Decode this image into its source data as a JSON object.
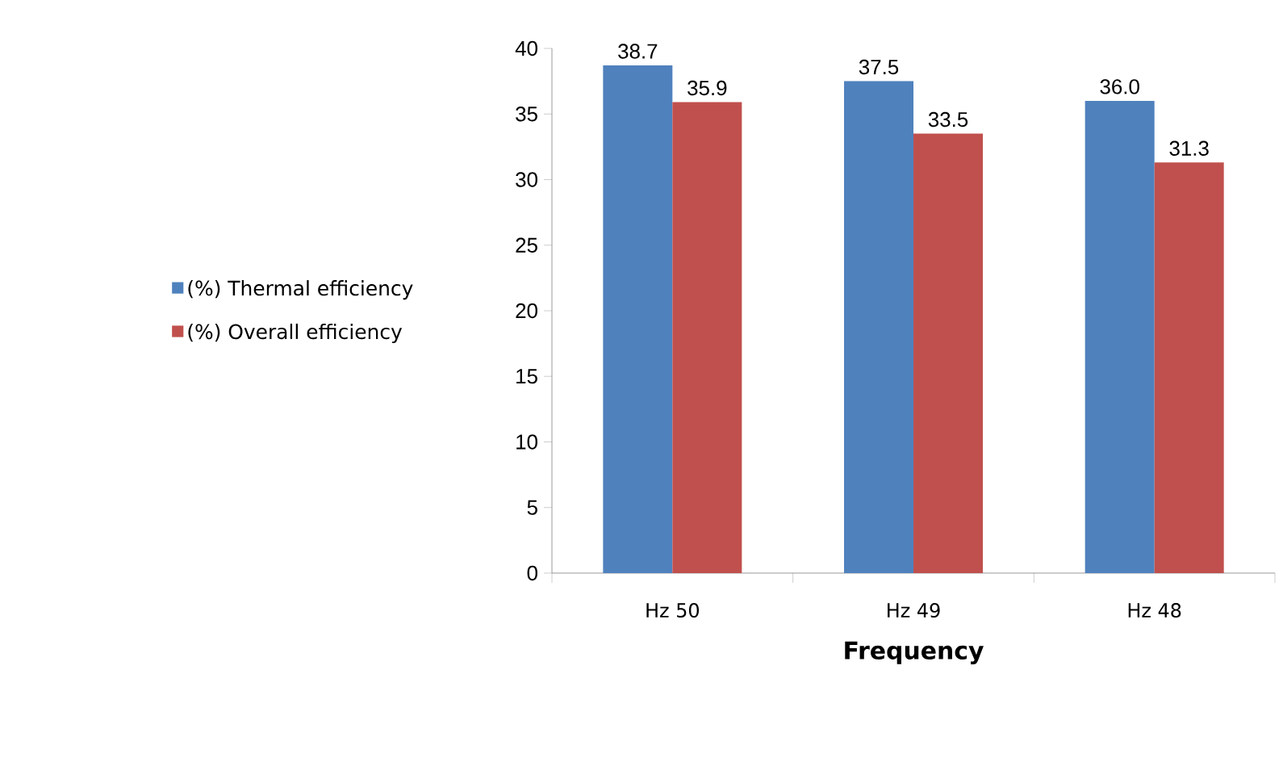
{
  "chart_data": {
    "type": "bar",
    "xlabel": "Frequency",
    "categories": [
      "Hz 50",
      "Hz 49",
      "Hz 48"
    ],
    "series": [
      {
        "name": "(%) Thermal efficiency",
        "color": "#4f81bd",
        "values": [
          38.7,
          37.5,
          36.0
        ],
        "value_labels": [
          "38.7",
          "37.5",
          "36.0"
        ]
      },
      {
        "name": "(%) Overall efficiency",
        "color": "#c0504d",
        "values": [
          35.9,
          33.5,
          31.3
        ],
        "value_labels": [
          "35.9",
          "33.5",
          "31.3"
        ]
      }
    ],
    "ylim": [
      0,
      40
    ],
    "yticks": [
      0,
      5,
      10,
      15,
      20,
      25,
      30,
      35,
      40
    ],
    "grid": false,
    "legend": "left"
  }
}
